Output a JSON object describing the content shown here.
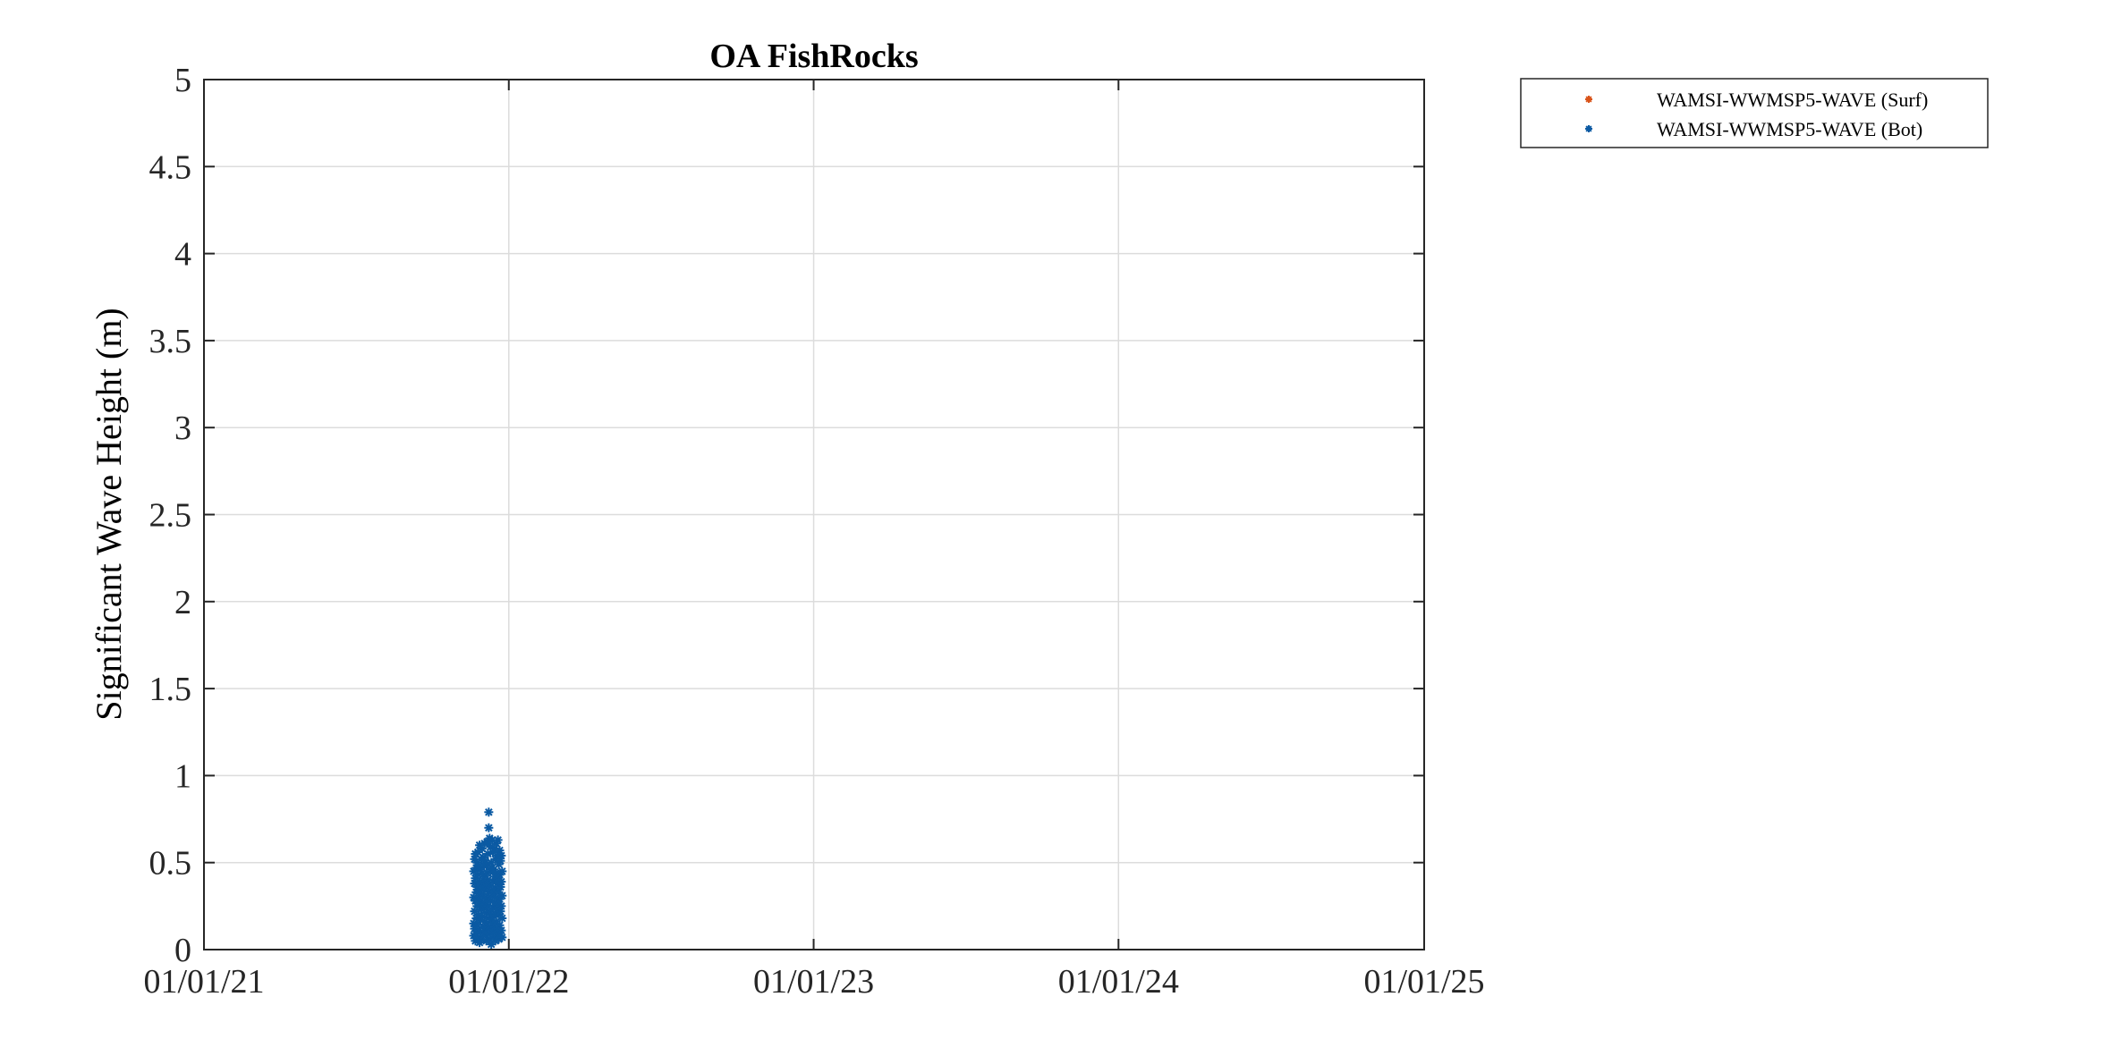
{
  "chart_data": {
    "type": "scatter",
    "title": "OA FishRocks",
    "xlabel": "",
    "ylabel": "Significant Wave Height (m)",
    "x_axis": {
      "type": "date",
      "range": [
        "2021-01-01",
        "2025-01-01"
      ],
      "ticks": [
        "2021-01-01",
        "2022-01-01",
        "2023-01-01",
        "2024-01-01",
        "2025-01-01"
      ],
      "tick_labels": [
        "01/01/21",
        "01/01/22",
        "01/01/23",
        "01/01/24",
        "01/01/25"
      ]
    },
    "y_axis": {
      "range": [
        0,
        5
      ],
      "ticks": [
        0,
        0.5,
        1,
        1.5,
        2,
        2.5,
        3,
        3.5,
        4,
        4.5,
        5
      ],
      "tick_labels": [
        "0",
        "0.5",
        "1",
        "1.5",
        "2",
        "2.5",
        "3",
        "3.5",
        "4",
        "4.5",
        "5"
      ]
    },
    "grid": true,
    "legend_position": "outside-top-right",
    "series": [
      {
        "name": "WAMSI-WWMSP5-WAVE (Surf)",
        "color": "#d95319",
        "marker": "asterisk",
        "points": []
      },
      {
        "name": "WAMSI-WWMSP5-WAVE (Bot)",
        "color": "#0b5aa3",
        "marker": "asterisk",
        "points": [
          [
            "2021-11-20",
            0.15
          ],
          [
            "2021-11-20",
            0.3
          ],
          [
            "2021-11-20",
            0.45
          ],
          [
            "2021-11-20",
            0.08
          ],
          [
            "2021-11-21",
            0.22
          ],
          [
            "2021-11-21",
            0.38
          ],
          [
            "2021-11-21",
            0.52
          ],
          [
            "2021-11-21",
            0.12
          ],
          [
            "2021-11-22",
            0.05
          ],
          [
            "2021-11-22",
            0.28
          ],
          [
            "2021-11-22",
            0.41
          ],
          [
            "2021-11-22",
            0.55
          ],
          [
            "2021-11-23",
            0.18
          ],
          [
            "2021-11-23",
            0.33
          ],
          [
            "2021-11-23",
            0.47
          ],
          [
            "2021-11-23",
            0.09
          ],
          [
            "2021-11-24",
            0.25
          ],
          [
            "2021-11-24",
            0.36
          ],
          [
            "2021-11-24",
            0.5
          ],
          [
            "2021-11-24",
            0.14
          ],
          [
            "2021-11-25",
            0.07
          ],
          [
            "2021-11-25",
            0.29
          ],
          [
            "2021-11-25",
            0.43
          ],
          [
            "2021-11-25",
            0.56
          ],
          [
            "2021-11-26",
            0.2
          ],
          [
            "2021-11-26",
            0.34
          ],
          [
            "2021-11-26",
            0.48
          ],
          [
            "2021-11-26",
            0.11
          ],
          [
            "2021-11-27",
            0.26
          ],
          [
            "2021-11-27",
            0.39
          ],
          [
            "2021-11-27",
            0.6
          ],
          [
            "2021-11-27",
            0.04
          ],
          [
            "2021-11-28",
            0.17
          ],
          [
            "2021-11-28",
            0.31
          ],
          [
            "2021-11-28",
            0.46
          ],
          [
            "2021-11-28",
            0.1
          ],
          [
            "2021-11-29",
            0.23
          ],
          [
            "2021-11-29",
            0.37
          ],
          [
            "2021-11-29",
            0.52
          ],
          [
            "2021-11-29",
            0.06
          ],
          [
            "2021-11-30",
            0.19
          ],
          [
            "2021-11-30",
            0.32
          ],
          [
            "2021-11-30",
            0.44
          ],
          [
            "2021-11-30",
            0.58
          ],
          [
            "2021-12-01",
            0.13
          ],
          [
            "2021-12-01",
            0.27
          ],
          [
            "2021-12-01",
            0.4
          ],
          [
            "2021-12-01",
            0.53
          ],
          [
            "2021-12-02",
            0.08
          ],
          [
            "2021-12-02",
            0.24
          ],
          [
            "2021-12-02",
            0.35
          ],
          [
            "2021-12-02",
            0.49
          ],
          [
            "2021-12-03",
            0.16
          ],
          [
            "2021-12-03",
            0.3
          ],
          [
            "2021-12-03",
            0.42
          ],
          [
            "2021-12-03",
            0.61
          ],
          [
            "2021-12-04",
            0.11
          ],
          [
            "2021-12-04",
            0.26
          ],
          [
            "2021-12-04",
            0.38
          ],
          [
            "2021-12-04",
            0.51
          ],
          [
            "2021-12-05",
            0.05
          ],
          [
            "2021-12-05",
            0.21
          ],
          [
            "2021-12-05",
            0.36
          ],
          [
            "2021-12-05",
            0.48
          ],
          [
            "2021-12-06",
            0.14
          ],
          [
            "2021-12-06",
            0.29
          ],
          [
            "2021-12-06",
            0.44
          ],
          [
            "2021-12-06",
            0.62
          ],
          [
            "2021-12-07",
            0.09
          ],
          [
            "2021-12-07",
            0.25
          ],
          [
            "2021-12-07",
            0.4
          ],
          [
            "2021-12-07",
            0.55
          ],
          [
            "2021-12-08",
            0.79
          ],
          [
            "2021-12-08",
            0.7
          ],
          [
            "2021-12-08",
            0.33
          ],
          [
            "2021-12-08",
            0.18
          ],
          [
            "2021-12-09",
            0.06
          ],
          [
            "2021-12-09",
            0.22
          ],
          [
            "2021-12-09",
            0.37
          ],
          [
            "2021-12-09",
            0.64
          ],
          [
            "2021-12-10",
            0.12
          ],
          [
            "2021-12-10",
            0.28
          ],
          [
            "2021-12-10",
            0.45
          ],
          [
            "2021-12-10",
            0.59
          ],
          [
            "2021-12-11",
            0.03
          ],
          [
            "2021-12-11",
            0.2
          ],
          [
            "2021-12-11",
            0.34
          ],
          [
            "2021-12-11",
            0.5
          ],
          [
            "2021-12-12",
            0.15
          ],
          [
            "2021-12-12",
            0.31
          ],
          [
            "2021-12-12",
            0.47
          ],
          [
            "2021-12-12",
            0.63
          ],
          [
            "2021-12-13",
            0.1
          ],
          [
            "2021-12-13",
            0.24
          ],
          [
            "2021-12-13",
            0.39
          ],
          [
            "2021-12-13",
            0.56
          ],
          [
            "2021-12-14",
            0.07
          ],
          [
            "2021-12-14",
            0.19
          ],
          [
            "2021-12-14",
            0.32
          ],
          [
            "2021-12-14",
            0.46
          ],
          [
            "2021-12-15",
            0.13
          ],
          [
            "2021-12-15",
            0.27
          ],
          [
            "2021-12-15",
            0.42
          ],
          [
            "2021-12-15",
            0.58
          ],
          [
            "2021-12-16",
            0.05
          ],
          [
            "2021-12-16",
            0.21
          ],
          [
            "2021-12-16",
            0.35
          ],
          [
            "2021-12-16",
            0.52
          ],
          [
            "2021-12-17",
            0.16
          ],
          [
            "2021-12-17",
            0.3
          ],
          [
            "2021-12-17",
            0.44
          ],
          [
            "2021-12-17",
            0.61
          ],
          [
            "2021-12-18",
            0.09
          ],
          [
            "2021-12-18",
            0.23
          ],
          [
            "2021-12-18",
            0.38
          ],
          [
            "2021-12-18",
            0.54
          ],
          [
            "2021-12-19",
            0.12
          ],
          [
            "2021-12-19",
            0.26
          ],
          [
            "2021-12-19",
            0.41
          ],
          [
            "2021-12-19",
            0.63
          ],
          [
            "2021-12-20",
            0.06
          ],
          [
            "2021-12-20",
            0.2
          ],
          [
            "2021-12-20",
            0.33
          ],
          [
            "2021-12-20",
            0.49
          ],
          [
            "2021-12-21",
            0.14
          ],
          [
            "2021-12-21",
            0.29
          ],
          [
            "2021-12-21",
            0.43
          ],
          [
            "2021-12-21",
            0.57
          ],
          [
            "2021-12-22",
            0.08
          ],
          [
            "2021-12-22",
            0.22
          ],
          [
            "2021-12-22",
            0.36
          ],
          [
            "2021-12-22",
            0.51
          ],
          [
            "2021-12-23",
            0.11
          ],
          [
            "2021-12-23",
            0.25
          ],
          [
            "2021-12-23",
            0.39
          ],
          [
            "2021-12-23",
            0.54
          ],
          [
            "2021-12-24",
            0.07
          ],
          [
            "2021-12-24",
            0.18
          ],
          [
            "2021-12-24",
            0.31
          ],
          [
            "2021-12-24",
            0.45
          ]
        ]
      }
    ]
  }
}
